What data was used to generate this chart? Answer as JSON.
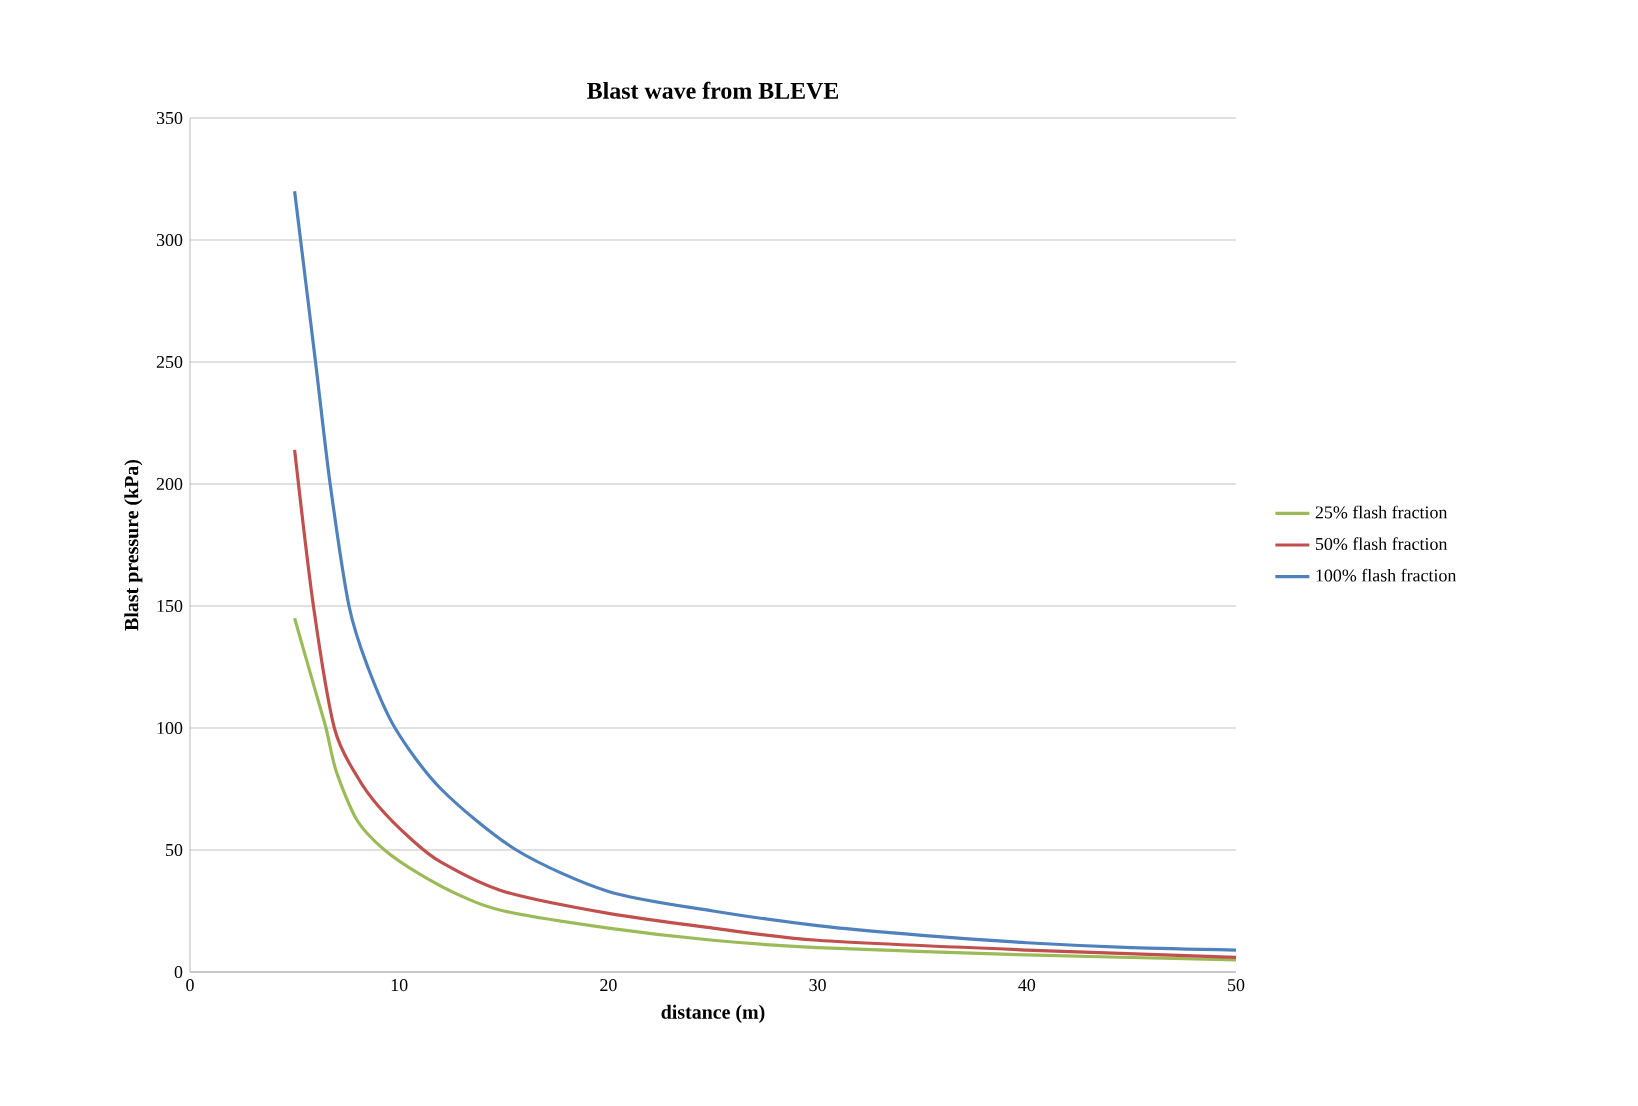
{
  "chart_data": {
    "type": "line",
    "title": "Blast wave from BLEVE",
    "xlabel": "distance (m)",
    "ylabel": "Blast pressure (kPa)",
    "xlim": [
      0,
      50
    ],
    "ylim": [
      0,
      350
    ],
    "xticks": [
      0,
      10,
      20,
      30,
      40,
      50
    ],
    "yticks": [
      0,
      50,
      100,
      150,
      200,
      250,
      300,
      350
    ],
    "grid": "y",
    "legend": "right",
    "series": [
      {
        "name": "25% flash fraction",
        "color": "#9bbb59",
        "x": [
          5,
          6,
          6.5,
          7,
          8,
          9.3,
          11,
          13,
          15,
          20,
          25,
          30,
          40,
          50
        ],
        "values": [
          145,
          115,
          100,
          82,
          62,
          50,
          40,
          31,
          25,
          18,
          13,
          10,
          7,
          5
        ]
      },
      {
        "name": "50% flash fraction",
        "color": "#c0504d",
        "x": [
          5,
          5.9,
          6.9,
          8,
          9,
          10.5,
          12,
          15,
          20,
          25,
          30,
          40,
          50
        ],
        "values": [
          214,
          150,
          100,
          80,
          68,
          55,
          45,
          33,
          24,
          18,
          13,
          9,
          6
        ]
      },
      {
        "name": "100% flash fraction",
        "color": "#4f81bd",
        "x": [
          5,
          6,
          6.7,
          7.6,
          8.5,
          9.8,
          12,
          15.6,
          20,
          25,
          30,
          35,
          40,
          45,
          50
        ],
        "values": [
          320,
          250,
          200,
          150,
          125,
          100,
          75,
          50,
          33,
          25,
          19,
          15,
          12,
          10,
          9
        ]
      }
    ]
  }
}
